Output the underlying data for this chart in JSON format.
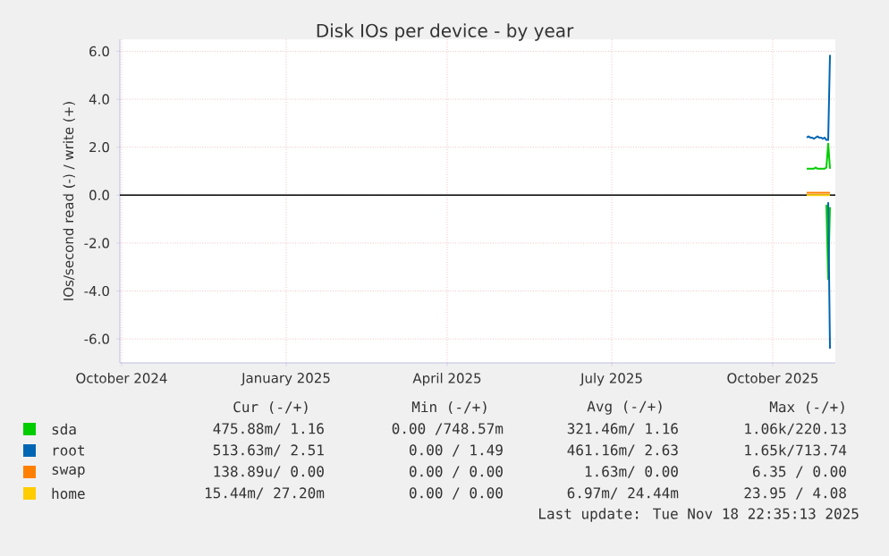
{
  "chart_data": {
    "type": "line",
    "title": "Disk IOs per device - by year",
    "ylabel": "IOs/second read (-) / write (+)",
    "x": [
      "2025-11-02",
      "2025-11-03",
      "2025-11-04",
      "2025-11-05",
      "2025-11-06",
      "2025-11-07",
      "2025-11-08",
      "2025-11-09",
      "2025-11-10",
      "2025-11-11",
      "2025-11-12",
      "2025-11-13",
      "2025-11-14",
      "2025-11-15"
    ],
    "series": [
      {
        "name": "sda",
        "color": "#00cc00",
        "values": [
          1.1,
          1.1,
          1.1,
          1.1,
          1.1,
          1.15,
          1.1,
          1.1,
          1.1,
          1.1,
          1.1,
          1.15,
          2.15,
          1.1
        ]
      },
      {
        "color": "#00cc00",
        "values": [
          null,
          null,
          null,
          null,
          null,
          null,
          null,
          null,
          null,
          null,
          null,
          -0.4,
          -3.5,
          -0.5
        ]
      },
      {
        "name": "root",
        "color": "#0066b3",
        "values": [
          2.4,
          2.45,
          2.4,
          2.4,
          2.35,
          2.4,
          2.45,
          2.4,
          2.4,
          2.35,
          2.4,
          2.3,
          2.3,
          5.85
        ]
      },
      {
        "color": "#0066b3",
        "values": [
          null,
          null,
          null,
          null,
          null,
          null,
          null,
          null,
          null,
          null,
          null,
          null,
          -0.3,
          -6.4
        ]
      },
      {
        "name": "swap",
        "color": "#ff8000",
        "values": [
          0.1,
          0.1,
          0.1,
          0.1,
          0.1,
          0.1,
          0.1,
          0.1,
          0.1,
          0.1,
          0.1,
          0.1,
          0.1,
          0.1
        ]
      },
      {
        "name": "home",
        "color": "#ffcc00",
        "values": [
          0,
          0,
          0,
          0,
          0,
          0,
          0,
          0,
          0,
          0,
          0,
          0,
          0,
          0
        ]
      }
    ],
    "xlim": [
      "2024-10-14",
      "2025-11-18"
    ],
    "xticks": [
      {
        "value": "2024-10-15",
        "label": "October 2024"
      },
      {
        "value": "2025-01-15",
        "label": "January 2025"
      },
      {
        "value": "2025-04-15",
        "label": "April 2025"
      },
      {
        "value": "2025-07-16",
        "label": "July 2025"
      },
      {
        "value": "2025-10-14",
        "label": "October 2025"
      }
    ],
    "ylim": [
      -7,
      6.5
    ],
    "yticks": [
      {
        "value": -6,
        "label": "-6.0"
      },
      {
        "value": -4,
        "label": "-4.0"
      },
      {
        "value": -2,
        "label": "-2.0"
      },
      {
        "value": 0,
        "label": "0.0"
      },
      {
        "value": 2,
        "label": "2.0"
      },
      {
        "value": 4,
        "label": "4.0"
      },
      {
        "value": 6,
        "label": "6.0"
      }
    ],
    "ref_lines": [
      {
        "axis": "y",
        "value": 0,
        "color": "#000000"
      }
    ],
    "grid": true,
    "legend": "bottom",
    "annotations": [
      "Cur (-/+)",
      "Min (-/+)",
      "Avg (-/+)",
      "Max (-/+)",
      "475.88m/ 1.16",
      "0.00 /748.57m",
      "321.46m/ 1.16",
      "1.06k/220.13",
      "513.63m/ 2.51",
      "0.00 / 1.49",
      "461.16m/ 2.63",
      "1.65k/713.74",
      "138.89u/ 0.00",
      "0.00 / 0.00",
      "1.63m/ 0.00",
      "6.35 / 0.00",
      "15.44m/ 27.20m",
      "0.00 / 0.00",
      "6.97m/ 24.44m",
      "23.95 / 4.08",
      "Last update: Tue Nov 18 22:35:13 2025"
    ]
  }
}
